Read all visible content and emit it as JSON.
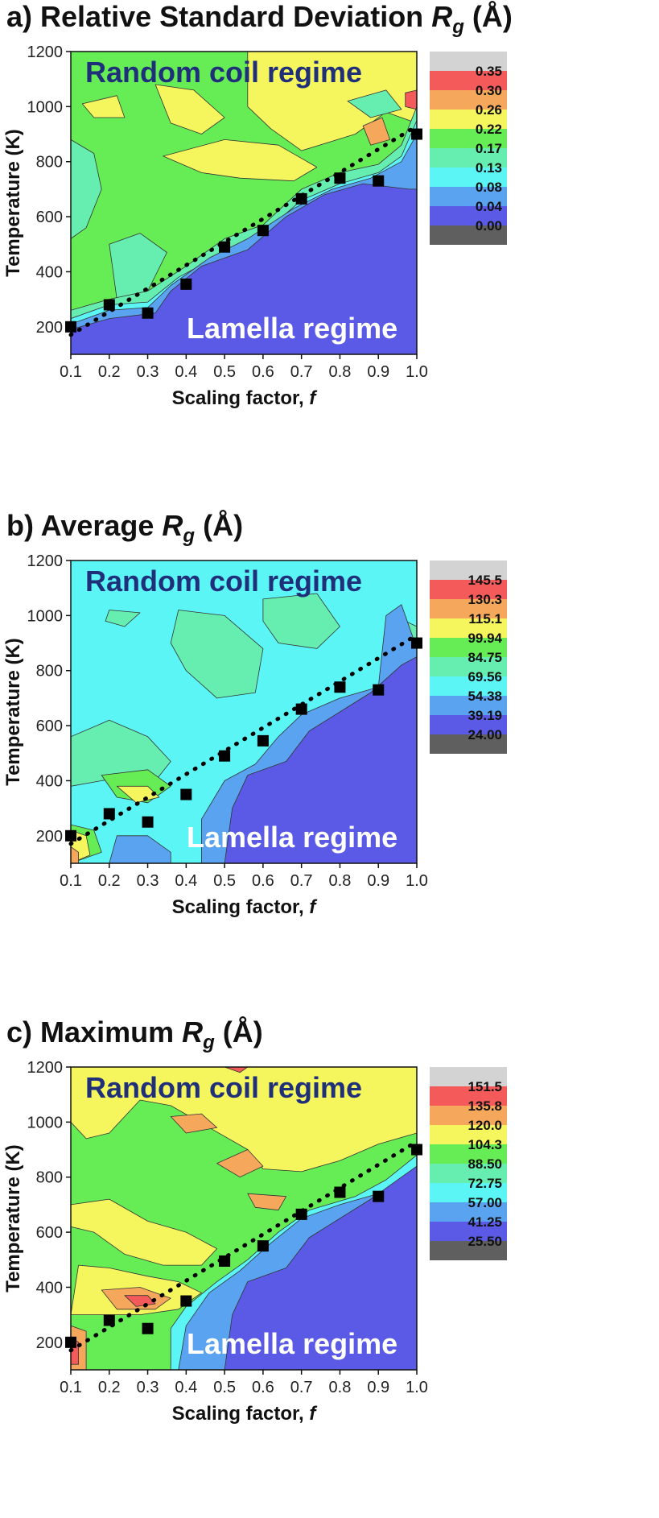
{
  "colors": {
    "levels": [
      "#5f5f5f",
      "#5a5ae6",
      "#5aa3f0",
      "#5cf5f5",
      "#66eeb0",
      "#66ec55",
      "#f5f55e",
      "#f5a85c",
      "#f45a5a",
      "#d3d3d3"
    ],
    "marker": "#000000",
    "regime_text_top": "#1f2f7a",
    "regime_text_bottom": "#ffffff"
  },
  "panels": [
    {
      "letter": "a)",
      "title_text": "Relative Standard Deviation",
      "title_symbol": "R",
      "title_sub": "g",
      "title_unit": "(Å)",
      "legend_labels": [
        "0.35",
        "0.30",
        "0.26",
        "0.22",
        "0.17",
        "0.13",
        "0.08",
        "0.04",
        "0.00"
      ]
    },
    {
      "letter": "b)",
      "title_text": "Average",
      "title_symbol": "R",
      "title_sub": "g",
      "title_unit": "(Å)",
      "legend_labels": [
        "145.5",
        "130.3",
        "115.1",
        "99.94",
        "84.75",
        "69.56",
        "54.38",
        "39.19",
        "24.00"
      ]
    },
    {
      "letter": "c)",
      "title_text": "Maximum",
      "title_symbol": "R",
      "title_sub": "g",
      "title_unit": "(Å)",
      "legend_labels": [
        "151.5",
        "135.8",
        "120.0",
        "104.3",
        "88.50",
        "72.75",
        "57.00",
        "41.25",
        "25.50"
      ]
    }
  ],
  "labels": {
    "random_coil": "Random coil regime",
    "lamella": "Lamella regime"
  },
  "chart_data": [
    {
      "type": "heatmap",
      "title": "a) Relative Standard Deviation Rg (Å)",
      "xlabel": "Scaling factor, f",
      "ylabel": "Temperature (K)",
      "xlim": [
        0.1,
        1.0
      ],
      "ylim": [
        100,
        1200
      ],
      "xticks": [
        0.1,
        0.2,
        0.3,
        0.4,
        0.5,
        0.6,
        0.7,
        0.8,
        0.9,
        1.0
      ],
      "yticks": [
        200,
        400,
        600,
        800,
        1000,
        1200
      ],
      "legend_levels": [
        0.0,
        0.04,
        0.08,
        0.13,
        0.17,
        0.22,
        0.26,
        0.3,
        0.35
      ],
      "transition_points": {
        "x": [
          0.1,
          0.2,
          0.3,
          0.4,
          0.5,
          0.6,
          0.7,
          0.8,
          0.9,
          1.0
        ],
        "y": [
          200,
          280,
          250,
          355,
          490,
          550,
          665,
          740,
          730,
          900
        ]
      },
      "annotations": [
        "Random coil regime",
        "Lamella regime"
      ]
    },
    {
      "type": "heatmap",
      "title": "b) Average Rg (Å)",
      "xlabel": "Scaling factor, f",
      "ylabel": "Temperature (K)",
      "xlim": [
        0.1,
        1.0
      ],
      "ylim": [
        100,
        1200
      ],
      "xticks": [
        0.1,
        0.2,
        0.3,
        0.4,
        0.5,
        0.6,
        0.7,
        0.8,
        0.9,
        1.0
      ],
      "yticks": [
        200,
        400,
        600,
        800,
        1000,
        1200
      ],
      "legend_levels": [
        24.0,
        39.19,
        54.38,
        69.56,
        84.75,
        99.94,
        115.1,
        130.3,
        145.5
      ],
      "transition_points": {
        "x": [
          0.1,
          0.2,
          0.3,
          0.4,
          0.5,
          0.6,
          0.7,
          0.8,
          0.9,
          1.0
        ],
        "y": [
          200,
          280,
          250,
          350,
          490,
          545,
          660,
          740,
          730,
          900
        ]
      },
      "annotations": [
        "Random coil regime",
        "Lamella regime"
      ]
    },
    {
      "type": "heatmap",
      "title": "c) Maximum Rg (Å)",
      "xlabel": "Scaling factor, f",
      "ylabel": "Temperature (K)",
      "xlim": [
        0.1,
        1.0
      ],
      "ylim": [
        100,
        1200
      ],
      "xticks": [
        0.1,
        0.2,
        0.3,
        0.4,
        0.5,
        0.6,
        0.7,
        0.8,
        0.9,
        1.0
      ],
      "yticks": [
        200,
        400,
        600,
        800,
        1000,
        1200
      ],
      "legend_levels": [
        25.5,
        41.25,
        57.0,
        72.75,
        88.5,
        104.3,
        120.0,
        135.8,
        151.5
      ],
      "transition_points": {
        "x": [
          0.1,
          0.2,
          0.3,
          0.4,
          0.5,
          0.6,
          0.7,
          0.8,
          0.9,
          1.0
        ],
        "y": [
          200,
          280,
          250,
          350,
          495,
          550,
          665,
          745,
          730,
          900
        ]
      },
      "annotations": [
        "Random coil regime",
        "Lamella regime"
      ]
    }
  ]
}
